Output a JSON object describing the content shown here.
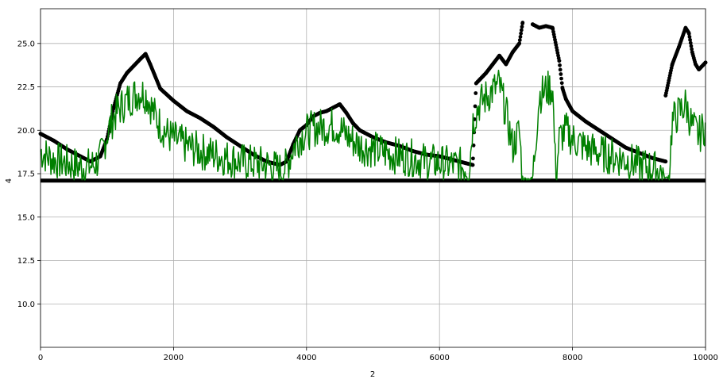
{
  "chart_data": {
    "type": "line",
    "xlabel": "2",
    "ylabel": "4",
    "xlim": [
      0,
      10000
    ],
    "ylim": [
      7.5,
      27
    ],
    "grid": true,
    "x_ticks": [
      0,
      2000,
      4000,
      6000,
      8000,
      10000
    ],
    "x_tick_labels": [
      "0",
      "2000",
      "4000",
      "6000",
      "8000",
      "10000"
    ],
    "y_ticks": [
      10.0,
      12.5,
      15.0,
      17.5,
      20.0,
      22.5,
      25.0
    ],
    "y_tick_labels": [
      "10.0",
      "12.5",
      "15.0",
      "17.5",
      "20.0",
      "22.5",
      "25.0"
    ],
    "colors": {
      "series_a": "#000000",
      "series_b": "#008000"
    },
    "series": [
      {
        "style": "markers",
        "color": "#000000",
        "x": [
          0,
          200,
          400,
          600,
          750,
          900,
          1000,
          1100,
          1200,
          1300,
          1400,
          1500,
          1580,
          1650,
          1800,
          2000,
          2200,
          2400,
          2600,
          2800,
          3000,
          3200,
          3400,
          3600,
          3700,
          3800,
          3900,
          4000,
          4100,
          4200,
          4300,
          4400,
          4500,
          4600,
          4700,
          4800,
          5000,
          5200,
          5400,
          5600,
          5800,
          6000,
          6200,
          6400,
          6500,
          6550,
          6600,
          6700,
          6800,
          6900,
          7000,
          7100,
          7200,
          7250
        ],
        "y": [
          19.8,
          19.4,
          18.9,
          18.5,
          18.2,
          18.5,
          19.5,
          21.3,
          22.7,
          23.3,
          23.7,
          24.1,
          24.4,
          23.8,
          22.4,
          21.7,
          21.1,
          20.7,
          20.2,
          19.6,
          19.1,
          18.6,
          18.2,
          18.0,
          18.2,
          19.2,
          20.0,
          20.3,
          20.8,
          21.0,
          21.1,
          21.3,
          21.5,
          21.0,
          20.4,
          20.0,
          19.6,
          19.3,
          19.1,
          18.8,
          18.6,
          18.5,
          18.3,
          18.1,
          18.0,
          22.7,
          22.9,
          23.3,
          23.8,
          24.3,
          23.8,
          24.5,
          25.0,
          26.2
        ]
      },
      {
        "style": "markers",
        "color": "#000000",
        "x": [
          7400,
          7500,
          7600,
          7700,
          7800,
          7850,
          7900,
          8000,
          8200,
          8400,
          8600,
          8800,
          9000,
          9200,
          9400
        ],
        "y": [
          26.1,
          25.9,
          26.0,
          25.9,
          24.0,
          22.4,
          21.8,
          21.1,
          20.5,
          20.0,
          19.5,
          19.0,
          18.7,
          18.4,
          18.2
        ]
      },
      {
        "style": "markers",
        "color": "#000000",
        "x": [
          9400,
          9500,
          9600,
          9700,
          9750,
          9800,
          9850,
          9900,
          10000
        ],
        "y": [
          22.0,
          23.8,
          24.8,
          25.9,
          25.6,
          24.5,
          23.8,
          23.5,
          23.9
        ]
      },
      {
        "style": "markers",
        "color": "#000000",
        "x": [
          0,
          10000
        ],
        "y": [
          17.1,
          17.1
        ]
      },
      {
        "style": "line",
        "color": "#008000",
        "x": [
          0,
          100,
          200,
          300,
          400,
          500,
          600,
          700,
          800,
          900,
          1000,
          1100,
          1200,
          1300,
          1400,
          1500,
          1600,
          1700,
          1800,
          1900,
          2000,
          2200,
          2400,
          2600,
          2800,
          3000,
          3200,
          3400,
          3600,
          3700,
          3800,
          3900,
          4000,
          4100,
          4200,
          4300,
          4400,
          4500,
          4600,
          4800,
          5000,
          5200,
          5400,
          5600,
          5800,
          6000,
          6200,
          6400,
          6450,
          6500,
          6600,
          6700,
          6800,
          6900,
          7000,
          7100,
          7200,
          7250,
          7300,
          7400,
          7500,
          7600,
          7700,
          7750,
          7800,
          7900,
          8000,
          8200,
          8400,
          8600,
          8800,
          9000,
          9200,
          9350,
          9400,
          9450,
          9500,
          9600,
          9700,
          9800,
          9900,
          10000
        ],
        "y": [
          18.8,
          18.5,
          18.3,
          18.2,
          18.1,
          18.0,
          17.9,
          17.9,
          18.0,
          18.4,
          19.8,
          20.8,
          21.3,
          21.7,
          22.0,
          22.2,
          22.0,
          21.0,
          20.3,
          19.8,
          19.5,
          19.1,
          18.8,
          18.6,
          18.4,
          18.2,
          18.1,
          18.0,
          17.7,
          17.9,
          19.0,
          19.6,
          19.9,
          20.1,
          20.2,
          20.2,
          20.3,
          20.1,
          19.7,
          19.1,
          18.9,
          18.7,
          18.5,
          18.4,
          18.2,
          18.1,
          18.0,
          17.9,
          17.8,
          20.5,
          21.5,
          21.9,
          22.3,
          22.6,
          21.0,
          19.0,
          20.0,
          17.2,
          17.2,
          17.2,
          22.0,
          22.3,
          22.5,
          17.2,
          19.5,
          20.0,
          19.5,
          19.0,
          18.7,
          18.5,
          18.3,
          18.0,
          17.8,
          17.6,
          17.2,
          17.4,
          20.5,
          21.0,
          21.5,
          20.2,
          19.7,
          20.3
        ]
      }
    ]
  }
}
